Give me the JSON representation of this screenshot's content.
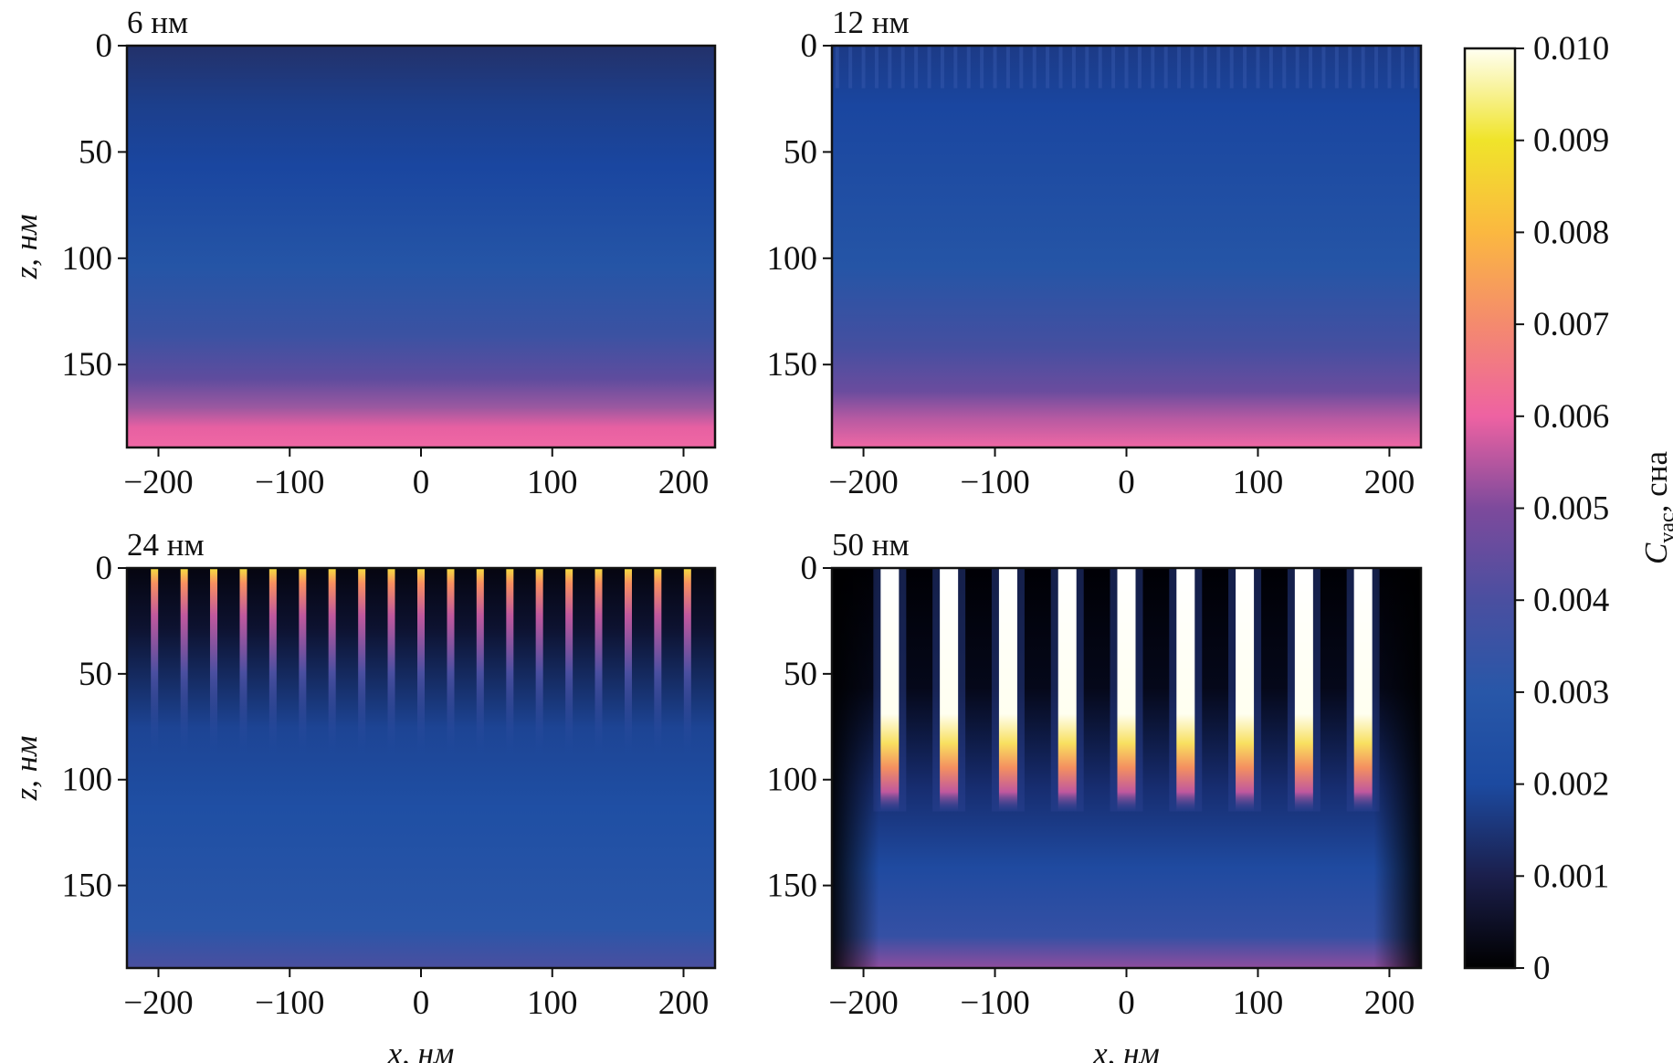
{
  "chart_data": {
    "type": "heatmap",
    "xlabel": "x, нм",
    "ylabel": "z, нм",
    "xlim": [
      -224,
      224
    ],
    "ylim": [
      0,
      189
    ],
    "xticks": [
      -200,
      -100,
      0,
      100,
      200
    ],
    "xtick_labels": [
      "−200",
      "−100",
      "0",
      "100",
      "200"
    ],
    "yticks": [
      0,
      50,
      100,
      150
    ],
    "ytick_labels": [
      "0",
      "50",
      "100",
      "150"
    ],
    "colorbar": {
      "label_main": "C",
      "label_sub": "vac",
      "label_unit": ", сна",
      "range": [
        0,
        0.01
      ],
      "ticks": [
        0,
        0.001,
        0.002,
        0.003,
        0.004,
        0.005,
        0.006,
        0.007,
        0.008,
        0.009,
        0.01
      ],
      "tick_labels": [
        "0",
        "0.001",
        "0.002",
        "0.003",
        "0.004",
        "0.005",
        "0.006",
        "0.007",
        "0.008",
        "0.009",
        "0.010"
      ],
      "colormap": [
        "#000000",
        "#1b1f4c",
        "#1c4aa0",
        "#2857a8",
        "#4a4fa0",
        "#7d4a9c",
        "#ee62a2",
        "#f48a6e",
        "#fbb840",
        "#f0e42a",
        "#fffff2"
      ]
    },
    "panels": [
      {
        "title": "6 нм",
        "pattern": "uniform",
        "surface_value": 0.0015,
        "mid_value": 0.0025,
        "bottom_value": 0.006,
        "columns": []
      },
      {
        "title": "12 нм",
        "pattern": "striped-surface",
        "surface_value": 0.0016,
        "mid_value": 0.0025,
        "bottom_value": 0.006,
        "columns": [
          -220,
          -210,
          -200,
          -190,
          -180,
          -170,
          -160,
          -150,
          -140,
          -130,
          -120,
          -110,
          -100,
          -90,
          -80,
          -70,
          -60,
          -50,
          -40,
          -30,
          -20,
          -10,
          0,
          10,
          20,
          30,
          40,
          50,
          60,
          70,
          80,
          90,
          100,
          110,
          120,
          130,
          140,
          150,
          160,
          170,
          180,
          190,
          200,
          210,
          220
        ]
      },
      {
        "title": "24 нм",
        "pattern": "thin-columns",
        "surface_value": 0.0,
        "mid_value": 0.0025,
        "bottom_value": 0.004,
        "column_peak": 0.009,
        "column_depth": 90,
        "columns": [
          -203,
          -180.4,
          -157.9,
          -135.3,
          -112.8,
          -90.2,
          -67.7,
          -45.1,
          -22.6,
          0,
          22.6,
          45.1,
          67.7,
          90.2,
          112.8,
          135.3,
          157.9,
          180.4,
          203
        ]
      },
      {
        "title": "50 нм",
        "pattern": "thick-columns",
        "surface_value": 0.0,
        "mid_value": 0.002,
        "bottom_value": 0.005,
        "column_peak": 0.01,
        "column_depth": 115,
        "columns": [
          -180,
          -135,
          -90,
          -45,
          0,
          45,
          90,
          135,
          180
        ]
      }
    ]
  }
}
